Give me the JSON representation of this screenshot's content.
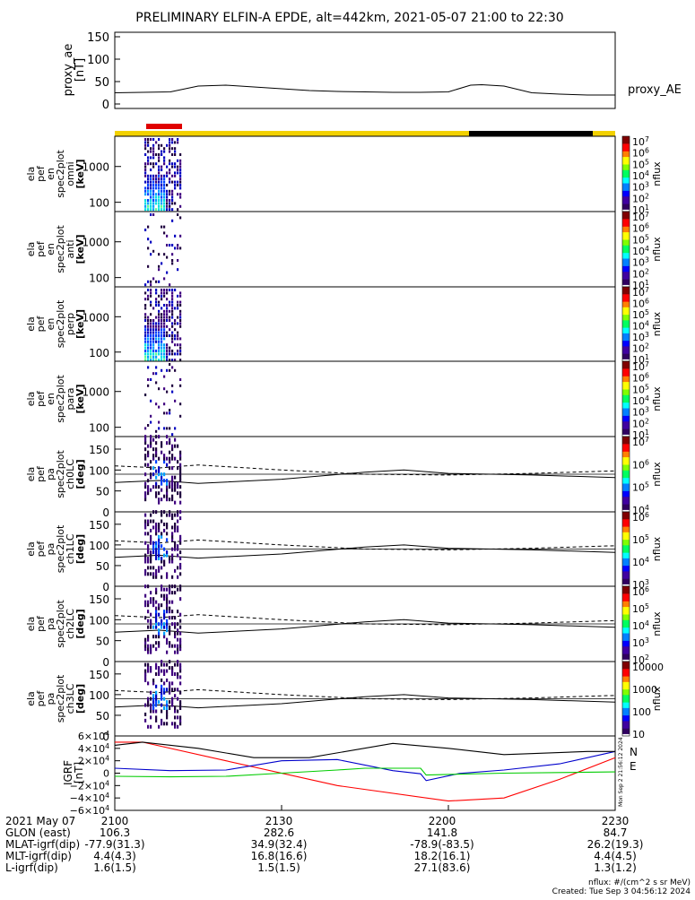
{
  "title": "PRELIMINARY ELFIN-A EPDE, alt=442km, 2021-05-07 21:00 to 22:30",
  "colors": {
    "sunlit_bar": "#f2d100",
    "shadow_bar": "#000000",
    "science_zone_bar": "#e00000",
    "igrf_x": "#ff0000",
    "igrf_y": "#0000cc",
    "igrf_z": "#00cc00",
    "igrf_total": "#000000"
  },
  "chart_data": [
    {
      "type": "line",
      "panel": "proxy_ae",
      "ylabel": [
        "proxy_ae",
        "[nT]"
      ],
      "yticks": [
        "150",
        "100",
        "50",
        "0"
      ],
      "ylim": [
        0,
        150
      ],
      "legend": "proxy_AE",
      "x_minutes": [
        0,
        10,
        15,
        20,
        25,
        35,
        40,
        45,
        50,
        55,
        60,
        64,
        66,
        70,
        75,
        80,
        85,
        90
      ],
      "values": [
        25,
        27,
        40,
        42,
        38,
        30,
        28,
        27,
        26,
        26,
        27,
        42,
        43,
        40,
        25,
        22,
        20,
        20
      ]
    },
    {
      "type": "heatmap",
      "panel": "omni",
      "ylabel": [
        "ela",
        "pef",
        "en",
        "spec2plot",
        "omni",
        "[keV]"
      ],
      "yticks": [
        "1000",
        "100"
      ],
      "colorbar_label": "nflux",
      "colorbar_ticks": [
        "10^7",
        "10^6",
        "10^5",
        "10^4",
        "10^3",
        "10^2",
        "10^1"
      ]
    },
    {
      "type": "heatmap",
      "panel": "anti",
      "ylabel": [
        "ela",
        "pef",
        "en",
        "spec2plot",
        "anti",
        "[keV]"
      ],
      "yticks": [
        "1000",
        "100"
      ],
      "colorbar_label": "nflux",
      "colorbar_ticks": [
        "10^7",
        "10^6",
        "10^5",
        "10^4",
        "10^3",
        "10^2",
        "10^1"
      ]
    },
    {
      "type": "heatmap",
      "panel": "perp",
      "ylabel": [
        "ela",
        "pef",
        "en",
        "spec2plot",
        "perp",
        "[keV]"
      ],
      "yticks": [
        "1000",
        "100"
      ],
      "colorbar_label": "nflux",
      "colorbar_ticks": [
        "10^7",
        "10^6",
        "10^5",
        "10^4",
        "10^3",
        "10^2",
        "10^1"
      ]
    },
    {
      "type": "heatmap",
      "panel": "para",
      "ylabel": [
        "ela",
        "pef",
        "en",
        "spec2plot",
        "para",
        "[keV]"
      ],
      "yticks": [
        "1000",
        "100"
      ],
      "colorbar_label": "nflux",
      "colorbar_ticks": [
        "10^7",
        "10^6",
        "10^5",
        "10^4",
        "10^3",
        "10^2",
        "10^1"
      ]
    },
    {
      "type": "heatmap",
      "panel": "ch0LC",
      "ylabel": [
        "ela",
        "pef",
        "pa",
        "spec2plot",
        "ch0LC",
        "[deg]"
      ],
      "yticks": [
        "150",
        "100",
        "50",
        "0"
      ],
      "ylim": [
        0,
        180
      ],
      "colorbar_label": "nflux",
      "colorbar_ticks": [
        "10^7",
        "10^6",
        "10^5",
        "10^4"
      ]
    },
    {
      "type": "heatmap",
      "panel": "ch1LC",
      "ylabel": [
        "ela",
        "pef",
        "pa",
        "spec2plot",
        "ch1LC",
        "[deg]"
      ],
      "yticks": [
        "150",
        "100",
        "50",
        "0"
      ],
      "ylim": [
        0,
        180
      ],
      "colorbar_label": "nflux",
      "colorbar_ticks": [
        "10^6",
        "10^5",
        "10^4",
        "10^3"
      ]
    },
    {
      "type": "heatmap",
      "panel": "ch2LC",
      "ylabel": [
        "ela",
        "pef",
        "pa",
        "spec2plot",
        "ch2LC",
        "[deg]"
      ],
      "yticks": [
        "150",
        "100",
        "50",
        "0"
      ],
      "ylim": [
        0,
        180
      ],
      "colorbar_label": "nflux",
      "colorbar_ticks": [
        "10^6",
        "10^5",
        "10^4",
        "10^3",
        "10^2"
      ]
    },
    {
      "type": "heatmap",
      "panel": "ch3LC",
      "ylabel": [
        "ela",
        "pef",
        "pa",
        "spec2plot",
        "ch3LC",
        "[deg]"
      ],
      "yticks": [
        "150",
        "100",
        "50",
        "0"
      ],
      "ylim": [
        0,
        180
      ],
      "colorbar_label": "nflux",
      "colorbar_ticks": [
        "10000",
        "1000",
        "100",
        "10"
      ]
    },
    {
      "type": "line",
      "panel": "IGRF",
      "ylabel": [
        "IGRF",
        "[nT]"
      ],
      "yticks": [
        "6×10^4",
        "4×10^4",
        "2×10^4",
        "0",
        "−2×10^4",
        "−4×10^4",
        "−6×10^4"
      ],
      "ylim": [
        -60000,
        60000
      ],
      "legend": [
        "N",
        "E"
      ],
      "series": [
        {
          "x_minutes": [
            0,
            5,
            20,
            40,
            60,
            70,
            80,
            90
          ],
          "values": [
            50000,
            50000,
            20000,
            -20000,
            -45000,
            -40000,
            -10000,
            25000
          ]
        },
        {
          "x_minutes": [
            0,
            10,
            20,
            30,
            40,
            50,
            55,
            56,
            62,
            70,
            80,
            90
          ],
          "values": [
            8000,
            4000,
            5000,
            20000,
            22000,
            4000,
            -1000,
            -12000,
            -500,
            5000,
            15000,
            35000
          ]
        },
        {
          "x_minutes": [
            0,
            10,
            20,
            30,
            40,
            45,
            55,
            56,
            60,
            70,
            80,
            90
          ],
          "values": [
            -5000,
            -6000,
            -5000,
            0,
            5000,
            8000,
            8000,
            -3000,
            -2000,
            0,
            1000,
            2000
          ]
        },
        {
          "x_minutes": [
            0,
            5,
            15,
            25,
            35,
            50,
            60,
            70,
            85,
            90
          ],
          "values": [
            45000,
            50000,
            40000,
            25000,
            25000,
            48000,
            40000,
            30000,
            35000,
            35000
          ]
        }
      ]
    }
  ],
  "colorbar_units": "nflux",
  "footer": {
    "rows": [
      {
        "label": "2021 May 07",
        "values": [
          "2100",
          "2130",
          "2200",
          "2230"
        ]
      },
      {
        "label": "GLON (east)",
        "values": [
          "106.3",
          "282.6",
          "141.8",
          "84.7"
        ]
      },
      {
        "label": "MLAT-igrf(dip)",
        "values": [
          "-77.9(31.3)",
          "34.9(32.4)",
          "-78.9(-83.5)",
          "26.2(19.3)"
        ]
      },
      {
        "label": "MLT-igrf(dip)",
        "values": [
          "4.4(4.3)",
          "16.8(16.6)",
          "18.2(16.1)",
          "4.4(4.5)"
        ]
      },
      {
        "label": "L-igrf(dip)",
        "values": [
          "1.6(1.5)",
          "1.5(1.5)",
          "27.1(83.6)",
          "1.3(1.2)"
        ]
      }
    ],
    "units_note": "nflux: #/(cm^2 s sr MeV)",
    "created": "Created: Tue Sep  3 04:56:12 2024",
    "side_stamp": "Mon Sep  2 21:56:12 2024"
  }
}
